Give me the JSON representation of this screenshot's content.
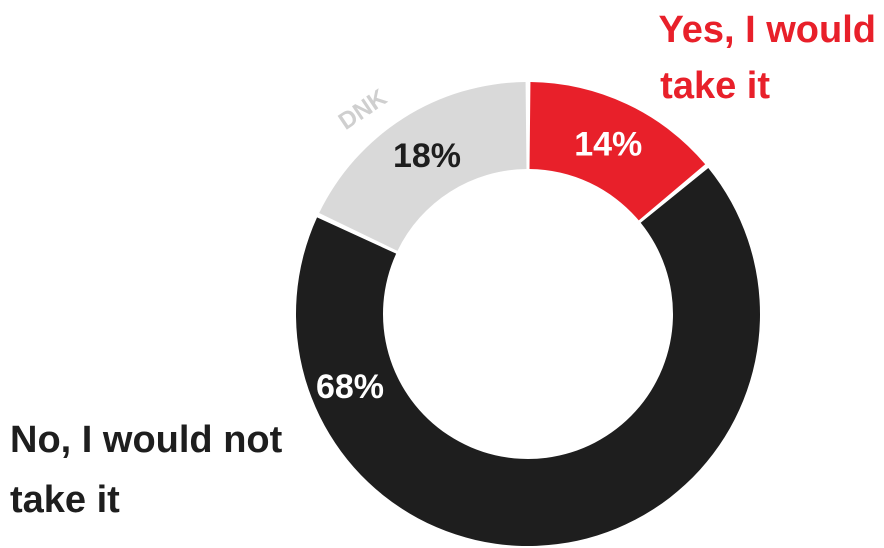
{
  "chart_data": {
    "type": "pie",
    "donut": true,
    "slices": [
      {
        "label": "Yes, I would take it",
        "value": 14,
        "value_label": "14%",
        "color": "#e8202a",
        "value_color": "#ffffff",
        "label_color": "#e8202a"
      },
      {
        "label": "No, I would not take it",
        "value": 68,
        "value_label": "68%",
        "color": "#1e1e1e",
        "value_color": "#ffffff",
        "label_color": "#1e1e1e"
      },
      {
        "label": "DNK",
        "value": 18,
        "value_label": "18%",
        "color": "#d9d9d9",
        "value_color": "#1e1e1e",
        "label_color": "#cfcfcf"
      }
    ],
    "direction": "clockwise",
    "start": "top"
  },
  "labels": {
    "yes_line1": "Yes, I would",
    "yes_line2": "take it",
    "no_line1": "No, I would not",
    "no_line2": "take it",
    "dnk": "DNK"
  }
}
